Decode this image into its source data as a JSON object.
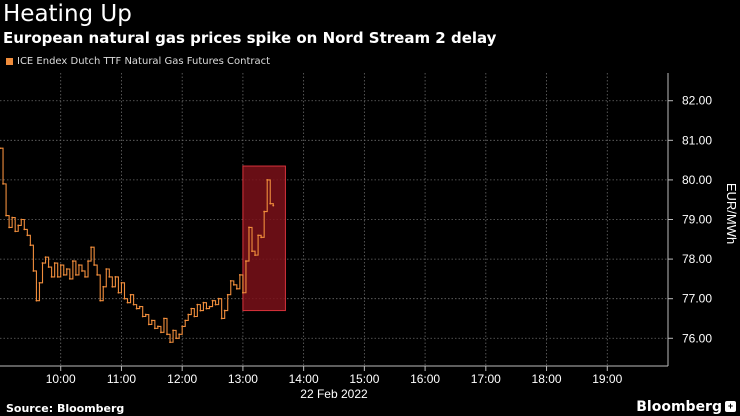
{
  "header": {
    "title": "Heating Up",
    "subtitle": "European natural gas prices spike on Nord Stream 2 delay"
  },
  "legend": {
    "label": "ICE Endex Dutch TTF Natural Gas Futures Contract"
  },
  "footer": {
    "source": "Source: Bloomberg",
    "brand": "Bloomberg",
    "brand_icon": "bloomberg-logo-icon"
  },
  "colors": {
    "background": "#000000",
    "series": "#f08d3c",
    "highlight_fill": "#7a1119",
    "highlight_stroke": "#d7323b",
    "grid": "#6a6a6a"
  },
  "chart_data": {
    "type": "line",
    "title": "Heating Up",
    "subtitle": "European natural gas prices spike on Nord Stream 2 delay",
    "xlabel": "22 Feb 2022",
    "ylabel": "EUR/MWh",
    "xlim": [
      9.0,
      20.0
    ],
    "ylim": [
      75.3,
      82.7
    ],
    "y_axis_position": "right",
    "grid": true,
    "x_ticks": [
      {
        "value": 10,
        "label": "10:00"
      },
      {
        "value": 11,
        "label": "11:00"
      },
      {
        "value": 12,
        "label": "12:00"
      },
      {
        "value": 13,
        "label": "13:00"
      },
      {
        "value": 14,
        "label": "14:00"
      },
      {
        "value": 15,
        "label": "15:00"
      },
      {
        "value": 16,
        "label": "16:00"
      },
      {
        "value": 17,
        "label": "17:00"
      },
      {
        "value": 18,
        "label": "18:00"
      },
      {
        "value": 19,
        "label": "19:00"
      }
    ],
    "y_ticks": [
      {
        "value": 76,
        "label": "76.00"
      },
      {
        "value": 77,
        "label": "77.00"
      },
      {
        "value": 78,
        "label": "78.00"
      },
      {
        "value": 79,
        "label": "79.00"
      },
      {
        "value": 80,
        "label": "80.00"
      },
      {
        "value": 81,
        "label": "81.00"
      },
      {
        "value": 82,
        "label": "82.00"
      }
    ],
    "highlight": {
      "x_start": 13.0,
      "x_end": 13.7,
      "y_low": 76.7,
      "y_high": 80.35
    },
    "series": [
      {
        "name": "ICE Endex Dutch TTF Natural Gas Futures Contract",
        "x": [
          9.0,
          9.05,
          9.1,
          9.15,
          9.2,
          9.25,
          9.3,
          9.35,
          9.4,
          9.45,
          9.5,
          9.55,
          9.6,
          9.65,
          9.7,
          9.75,
          9.8,
          9.85,
          9.9,
          9.95,
          10.0,
          10.05,
          10.1,
          10.15,
          10.2,
          10.25,
          10.3,
          10.35,
          10.4,
          10.45,
          10.5,
          10.55,
          10.6,
          10.65,
          10.7,
          10.75,
          10.8,
          10.85,
          10.9,
          10.95,
          11.0,
          11.05,
          11.1,
          11.15,
          11.2,
          11.25,
          11.3,
          11.35,
          11.4,
          11.45,
          11.5,
          11.55,
          11.6,
          11.65,
          11.7,
          11.75,
          11.8,
          11.85,
          11.9,
          11.95,
          12.0,
          12.05,
          12.1,
          12.15,
          12.2,
          12.25,
          12.3,
          12.35,
          12.4,
          12.45,
          12.5,
          12.55,
          12.6,
          12.65,
          12.7,
          12.75,
          12.8,
          12.85,
          12.9,
          12.95,
          13.0,
          13.05,
          13.1,
          13.15,
          13.2,
          13.25,
          13.3,
          13.35,
          13.4,
          13.45,
          13.5
        ],
        "values": [
          80.8,
          79.9,
          79.1,
          78.8,
          79.05,
          78.7,
          78.85,
          79.0,
          78.75,
          78.6,
          78.35,
          77.7,
          76.95,
          77.4,
          77.9,
          78.05,
          77.8,
          77.55,
          77.9,
          77.55,
          77.85,
          77.6,
          77.75,
          77.5,
          77.95,
          77.6,
          77.85,
          77.7,
          77.55,
          77.95,
          78.3,
          77.85,
          77.6,
          76.95,
          77.3,
          77.75,
          77.55,
          77.3,
          77.55,
          77.15,
          77.4,
          77.0,
          76.9,
          77.1,
          76.85,
          76.75,
          76.8,
          76.55,
          76.6,
          76.35,
          76.45,
          76.25,
          76.3,
          76.15,
          76.5,
          76.1,
          75.9,
          76.2,
          76.0,
          76.1,
          76.3,
          76.45,
          76.6,
          76.75,
          76.55,
          76.85,
          76.7,
          76.9,
          76.75,
          76.8,
          76.95,
          76.85,
          77.0,
          76.5,
          76.7,
          77.1,
          77.45,
          77.35,
          77.25,
          77.6,
          77.15,
          77.95,
          78.8,
          78.2,
          78.1,
          78.6,
          78.55,
          79.2,
          80.0,
          79.4,
          79.35
        ]
      }
    ]
  }
}
